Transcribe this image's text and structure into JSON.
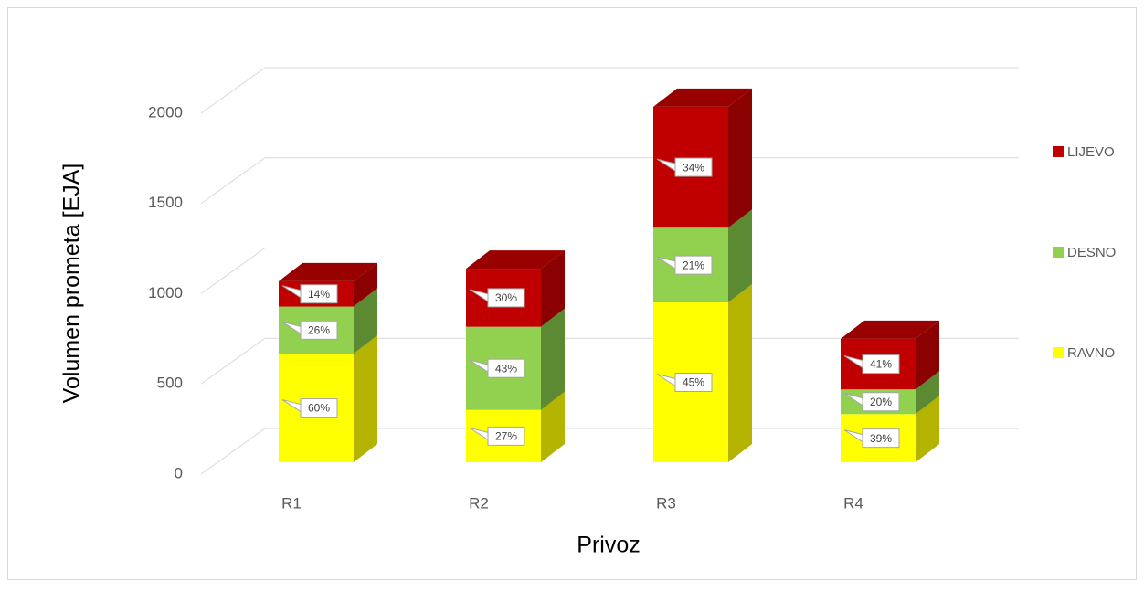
{
  "chart_data": {
    "type": "bar3d_stacked",
    "y_label": "Volumen prometa [EJA]",
    "x_label": "Privoz",
    "categories": [
      "R1",
      "R2",
      "R3",
      "R4"
    ],
    "series": [
      {
        "name": "RAVNO",
        "color": "#ffff00",
        "side_color": "#b3b300",
        "values": [
          602,
          290,
          886,
          267
        ],
        "share_labels": [
          "60%",
          "27%",
          "45%",
          "39%"
        ]
      },
      {
        "name": "DESNO",
        "color": "#92d050",
        "side_color": "#5b8a32",
        "values": [
          261,
          461,
          414,
          137
        ],
        "share_labels": [
          "26%",
          "43%",
          "21%",
          "20%"
        ]
      },
      {
        "name": "LIJEVO",
        "color": "#c00000",
        "side_color": "#8b0000",
        "top_color": "#990000",
        "values": [
          140,
          322,
          670,
          280
        ],
        "share_labels": [
          "14%",
          "30%",
          "34%",
          "41%"
        ]
      }
    ],
    "ylim": [
      0,
      2000
    ],
    "yticks": [
      0,
      500,
      1000,
      1500,
      2000
    ],
    "grid": true,
    "legend": "right"
  }
}
